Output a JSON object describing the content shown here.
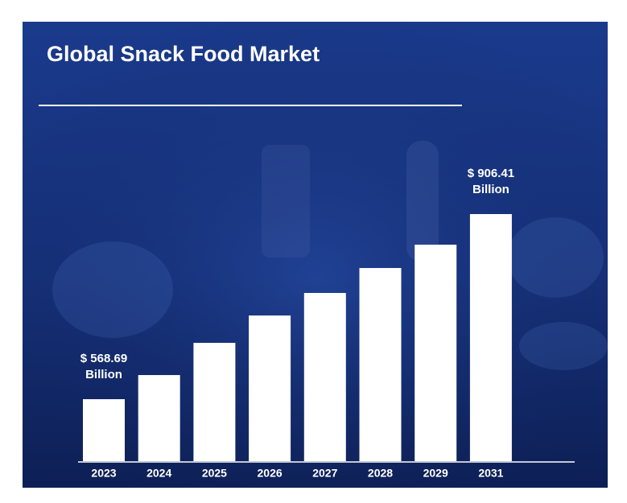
{
  "chart_data": {
    "type": "bar",
    "title": "Global Snack Food Market",
    "categories": [
      "2023",
      "2024",
      "2025",
      "2026",
      "2027",
      "2028",
      "2029",
      "2031"
    ],
    "values": [
      568.69,
      612.7,
      671.5,
      721.4,
      762.5,
      808.0,
      850.6,
      906.41
    ],
    "value_labels": [
      "$ 568.69 Billion",
      null,
      null,
      null,
      null,
      null,
      null,
      "$ 906.41 Billion"
    ],
    "color": "#ffffff"
  }
}
